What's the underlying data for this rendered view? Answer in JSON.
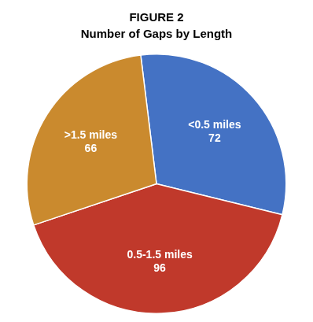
{
  "chart_data": {
    "type": "pie",
    "title": "FIGURE 2\nNumber of Gaps by Length",
    "categories": [
      "<0.5 miles",
      "0.5-1.5 miles",
      ">1.5 miles"
    ],
    "values": [
      72,
      96,
      66
    ],
    "colors": [
      "#4472C4",
      "#C0392B",
      "#CA8A2E"
    ],
    "data_labels": true
  }
}
